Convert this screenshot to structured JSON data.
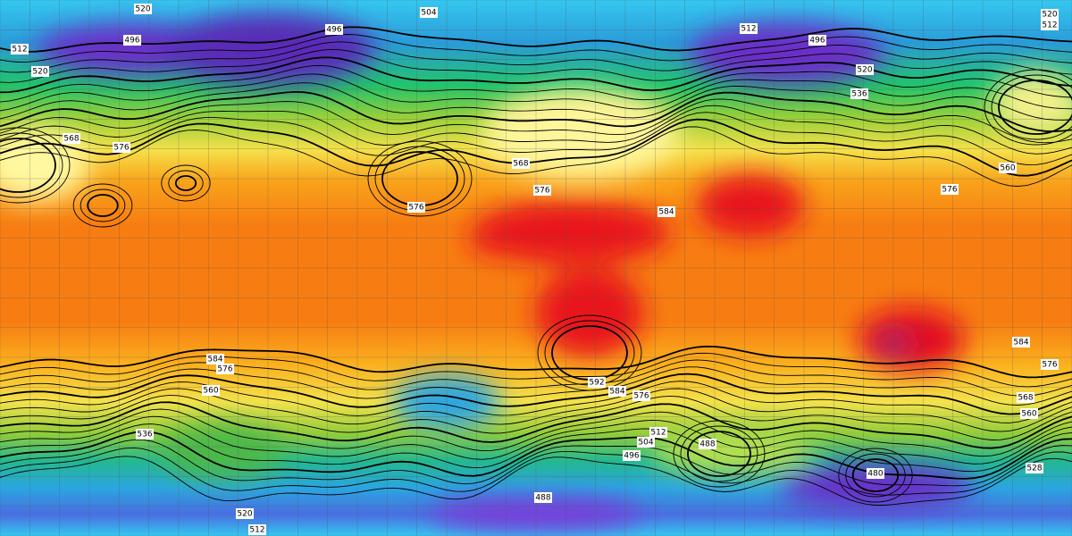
{
  "contour_labels": [
    520,
    496,
    496,
    504,
    512,
    496,
    520,
    536,
    520,
    512,
    512,
    520,
    568,
    576,
    576,
    568,
    576,
    584,
    560,
    576,
    584,
    576,
    584,
    576,
    592,
    584,
    576,
    568,
    560,
    512,
    504,
    496,
    488,
    480,
    488,
    520,
    512,
    560,
    536,
    528
  ]
}
